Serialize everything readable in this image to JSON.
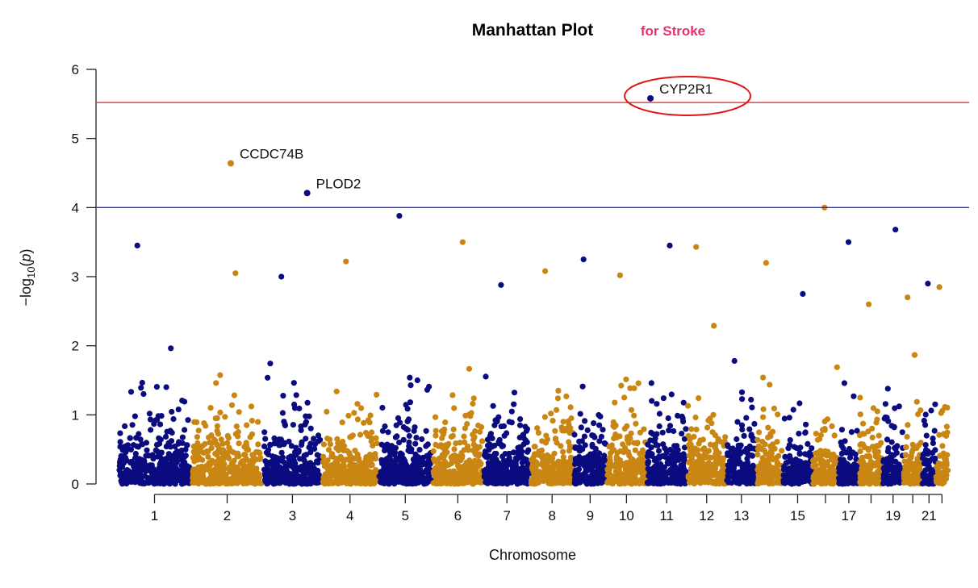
{
  "colors": {
    "navy": "#0b0b80",
    "orange": "#c98613",
    "red_line": "#e02020",
    "blue_line": "#2030e0",
    "subtitle": "#e8316e",
    "highlight": "#e01515"
  },
  "chart_data": {
    "type": "scatter",
    "title": "Manhattan Plot",
    "subtitle": "for Stroke",
    "xlabel": "Chromosome",
    "ylabel": "-log10(p)",
    "ylabel_parts": {
      "prefix": "−log",
      "sub": "10",
      "open": "(",
      "var": "p",
      "close": ")"
    },
    "ylim": [
      0,
      6
    ],
    "yticks": [
      0,
      1,
      2,
      3,
      4,
      5,
      6
    ],
    "xlim": [
      0,
      22
    ],
    "x_tick_labels": [
      "1",
      "2",
      "3",
      "4",
      "5",
      "6",
      "7",
      "8",
      "9",
      "10",
      "11",
      "12",
      "13",
      "15",
      "17",
      "19",
      "21"
    ],
    "x_tick_chromosomes": [
      1,
      2,
      3,
      4,
      5,
      6,
      7,
      8,
      9,
      10,
      11,
      12,
      13,
      15,
      17,
      19,
      21
    ],
    "chromosome_count": 22,
    "chromosome_color_order": [
      "navy",
      "orange"
    ],
    "thresholds": [
      {
        "name": "genome-wide",
        "value": 5.52,
        "color": "red_line"
      },
      {
        "name": "suggestive",
        "value": 4.0,
        "color": "blue_line"
      }
    ],
    "peaks_per_chromosome": [
      3.45,
      3.05,
      3.0,
      3.22,
      3.88,
      3.5,
      2.88,
      3.08,
      3.25,
      3.02,
      3.45,
      3.43,
      1.78,
      3.2,
      2.75,
      4.0,
      3.5,
      2.6,
      3.68,
      2.7,
      2.9,
      2.85
    ],
    "highlighted_snps": [
      {
        "gene": "CCDC74B",
        "chromosome": 2,
        "position": 0.55,
        "neglog10p": 4.64,
        "color": "orange"
      },
      {
        "gene": "PLOD2",
        "chromosome": 3,
        "position": 0.75,
        "neglog10p": 4.21,
        "color": "navy"
      },
      {
        "gene": "CYP2R1",
        "chromosome": 11,
        "position": 0.1,
        "neglog10p": 5.58,
        "color": "navy",
        "circled": true
      }
    ]
  }
}
